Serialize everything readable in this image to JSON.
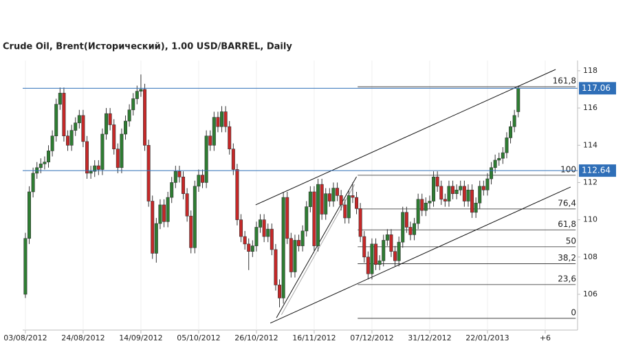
{
  "chart_data": {
    "type": "candlestick",
    "title": "Crude Oil, Brent(Исторический), 1.00 USD/BARREL, Daily",
    "up_color": "#2e7d32",
    "down_color": "#c62828",
    "xlim": [
      -0.7,
      143.4
    ],
    "ylim": [
      104.08,
      118.55
    ],
    "yticks": [
      106,
      108,
      110,
      112,
      114,
      116,
      118
    ],
    "xticks": [
      {
        "value": 0,
        "label": "03/08/2012"
      },
      {
        "value": 15,
        "label": "24/08/2012"
      },
      {
        "value": 30,
        "label": "14/09/2012"
      },
      {
        "value": 45,
        "label": "05/10/2012"
      },
      {
        "value": 60,
        "label": "26/10/2012"
      },
      {
        "value": 75,
        "label": "16/11/2012"
      },
      {
        "value": 90,
        "label": "07/12/2012"
      },
      {
        "value": 105,
        "label": "31/12/2012"
      },
      {
        "value": 120,
        "label": "22/01/2013"
      },
      {
        "value": 135,
        "label": "+6"
      }
    ],
    "ohlc": [
      [
        106.0,
        109.3,
        105.8,
        109.0
      ],
      [
        109.0,
        111.8,
        108.7,
        111.5
      ],
      [
        111.5,
        112.8,
        111.2,
        112.5
      ],
      [
        112.5,
        113.1,
        112.2,
        112.8
      ],
      [
        112.8,
        113.3,
        112.5,
        113.0
      ],
      [
        113.0,
        113.4,
        112.7,
        113.1
      ],
      [
        113.1,
        114.0,
        112.8,
        113.7
      ],
      [
        113.7,
        114.8,
        113.4,
        114.5
      ],
      [
        114.5,
        116.5,
        114.2,
        116.2
      ],
      [
        116.2,
        117.1,
        115.9,
        116.8
      ],
      [
        116.8,
        117.1,
        114.2,
        114.5
      ],
      [
        114.5,
        114.8,
        113.7,
        114.0
      ],
      [
        114.0,
        115.1,
        113.7,
        114.8
      ],
      [
        114.8,
        115.5,
        114.5,
        115.2
      ],
      [
        115.2,
        115.9,
        114.9,
        115.6
      ],
      [
        115.6,
        115.9,
        113.9,
        114.2
      ],
      [
        114.2,
        114.5,
        112.2,
        112.5
      ],
      [
        112.5,
        112.9,
        112.2,
        112.6
      ],
      [
        112.6,
        113.2,
        112.3,
        112.9
      ],
      [
        112.9,
        113.2,
        112.4,
        112.7
      ],
      [
        112.7,
        114.9,
        112.4,
        114.6
      ],
      [
        114.6,
        116.0,
        114.3,
        115.7
      ],
      [
        115.7,
        116.0,
        114.8,
        115.1
      ],
      [
        115.1,
        115.4,
        113.5,
        113.8
      ],
      [
        113.8,
        114.1,
        112.5,
        112.8
      ],
      [
        112.8,
        114.9,
        112.5,
        114.6
      ],
      [
        114.6,
        115.6,
        114.3,
        115.3
      ],
      [
        115.3,
        116.2,
        115.0,
        115.9
      ],
      [
        115.9,
        116.8,
        115.6,
        116.5
      ],
      [
        116.5,
        117.2,
        116.2,
        116.9
      ],
      [
        116.9,
        117.8,
        116.6,
        117.0
      ],
      [
        117.0,
        117.3,
        113.7,
        114.0
      ],
      [
        114.0,
        114.3,
        110.7,
        111.0
      ],
      [
        111.0,
        111.3,
        107.9,
        108.2
      ],
      [
        108.2,
        110.1,
        107.7,
        109.8
      ],
      [
        109.8,
        111.1,
        109.5,
        110.8
      ],
      [
        110.8,
        111.1,
        109.6,
        109.9
      ],
      [
        109.9,
        111.5,
        109.6,
        111.2
      ],
      [
        111.2,
        112.3,
        110.9,
        112.0
      ],
      [
        112.0,
        112.9,
        111.7,
        112.6
      ],
      [
        112.6,
        112.9,
        112.0,
        112.3
      ],
      [
        112.3,
        112.6,
        111.1,
        111.4
      ],
      [
        111.4,
        111.7,
        109.9,
        110.2
      ],
      [
        110.2,
        110.5,
        108.2,
        108.5
      ],
      [
        108.5,
        112.1,
        108.2,
        111.8
      ],
      [
        111.8,
        112.7,
        111.5,
        112.4
      ],
      [
        112.4,
        112.7,
        111.7,
        112.0
      ],
      [
        112.0,
        114.8,
        111.7,
        114.5
      ],
      [
        114.5,
        114.8,
        113.7,
        114.0
      ],
      [
        114.0,
        115.8,
        113.7,
        115.5
      ],
      [
        115.5,
        115.8,
        114.7,
        115.0
      ],
      [
        115.0,
        116.1,
        114.7,
        115.8
      ],
      [
        115.8,
        116.1,
        114.7,
        115.0
      ],
      [
        115.0,
        115.3,
        113.5,
        113.8
      ],
      [
        113.8,
        114.1,
        112.4,
        112.7
      ],
      [
        112.7,
        113.0,
        109.7,
        110.0
      ],
      [
        110.0,
        110.3,
        108.8,
        109.1
      ],
      [
        109.1,
        109.4,
        108.4,
        108.7
      ],
      [
        108.7,
        109.0,
        107.3,
        108.3
      ],
      [
        108.3,
        108.9,
        108.0,
        108.6
      ],
      [
        108.6,
        109.9,
        108.3,
        109.6
      ],
      [
        109.6,
        110.3,
        109.3,
        110.0
      ],
      [
        110.0,
        110.3,
        108.8,
        109.1
      ],
      [
        109.1,
        109.8,
        108.8,
        109.5
      ],
      [
        109.5,
        109.8,
        108.1,
        108.4
      ],
      [
        108.4,
        108.7,
        106.2,
        106.5
      ],
      [
        106.5,
        106.8,
        105.3,
        105.8
      ],
      [
        105.8,
        111.5,
        105.5,
        111.2
      ],
      [
        111.2,
        111.5,
        108.7,
        109.0
      ],
      [
        109.0,
        109.3,
        106.9,
        107.2
      ],
      [
        107.2,
        109.2,
        106.9,
        108.9
      ],
      [
        108.9,
        109.2,
        108.3,
        108.6
      ],
      [
        108.6,
        109.7,
        108.3,
        109.4
      ],
      [
        109.4,
        111.0,
        109.1,
        110.7
      ],
      [
        110.7,
        111.8,
        110.4,
        111.5
      ],
      [
        111.5,
        111.8,
        108.3,
        108.6
      ],
      [
        108.6,
        112.2,
        108.3,
        111.9
      ],
      [
        111.9,
        112.2,
        110.0,
        110.3
      ],
      [
        110.3,
        111.7,
        110.0,
        111.4
      ],
      [
        111.4,
        111.7,
        110.7,
        111.0
      ],
      [
        111.0,
        112.0,
        110.7,
        111.7
      ],
      [
        111.7,
        112.0,
        111.0,
        111.3
      ],
      [
        111.3,
        111.6,
        110.5,
        110.8
      ],
      [
        110.8,
        111.1,
        109.8,
        110.1
      ],
      [
        110.1,
        111.6,
        109.8,
        111.3
      ],
      [
        111.3,
        112.0,
        110.9,
        111.2
      ],
      [
        111.2,
        111.5,
        110.3,
        110.6
      ],
      [
        110.6,
        110.9,
        108.8,
        109.1
      ],
      [
        109.1,
        109.4,
        107.7,
        108.0
      ],
      [
        108.0,
        108.3,
        106.8,
        107.1
      ],
      [
        107.1,
        109.0,
        106.8,
        108.7
      ],
      [
        108.7,
        109.0,
        107.3,
        107.6
      ],
      [
        107.6,
        108.1,
        107.3,
        107.8
      ],
      [
        107.8,
        109.2,
        107.5,
        108.9
      ],
      [
        108.9,
        109.5,
        108.6,
        109.2
      ],
      [
        109.2,
        109.5,
        108.0,
        108.3
      ],
      [
        108.3,
        108.6,
        107.5,
        107.8
      ],
      [
        107.8,
        109.1,
        107.5,
        108.8
      ],
      [
        108.8,
        110.7,
        108.5,
        110.4
      ],
      [
        110.4,
        110.7,
        109.3,
        109.6
      ],
      [
        109.6,
        109.9,
        108.9,
        109.2
      ],
      [
        109.2,
        110.1,
        108.9,
        109.8
      ],
      [
        109.8,
        111.4,
        109.5,
        111.1
      ],
      [
        111.1,
        111.4,
        110.2,
        110.5
      ],
      [
        110.5,
        111.2,
        110.2,
        110.9
      ],
      [
        110.9,
        111.3,
        110.6,
        111.0
      ],
      [
        111.0,
        112.6,
        110.7,
        112.3
      ],
      [
        112.3,
        112.6,
        111.5,
        111.8
      ],
      [
        111.8,
        112.1,
        110.8,
        111.1
      ],
      [
        111.1,
        111.4,
        110.7,
        111.0
      ],
      [
        111.0,
        112.1,
        110.7,
        111.8
      ],
      [
        111.8,
        112.1,
        111.1,
        111.4
      ],
      [
        111.4,
        111.9,
        111.1,
        111.6
      ],
      [
        111.6,
        112.1,
        111.3,
        111.8
      ],
      [
        111.8,
        112.1,
        110.7,
        111.0
      ],
      [
        111.0,
        111.9,
        110.7,
        111.6
      ],
      [
        111.6,
        111.9,
        110.1,
        110.4
      ],
      [
        110.4,
        111.2,
        110.1,
        110.9
      ],
      [
        110.9,
        112.1,
        110.6,
        111.8
      ],
      [
        111.8,
        112.1,
        111.3,
        111.6
      ],
      [
        111.6,
        112.5,
        111.3,
        112.2
      ],
      [
        112.2,
        113.1,
        111.9,
        112.8
      ],
      [
        112.8,
        113.5,
        112.5,
        113.2
      ],
      [
        113.2,
        113.6,
        112.9,
        113.3
      ],
      [
        113.3,
        113.9,
        113.0,
        113.6
      ],
      [
        113.6,
        114.7,
        113.3,
        114.4
      ],
      [
        114.4,
        115.3,
        114.1,
        115.0
      ],
      [
        115.0,
        115.9,
        114.7,
        115.6
      ],
      [
        115.8,
        117.2,
        115.5,
        117.06
      ]
    ],
    "price_lines": [
      {
        "value": 117.06,
        "color": "#2f6fb8"
      },
      {
        "value": 112.64,
        "color": "#2f6fb8"
      }
    ],
    "fib_x": [
      86.3,
      142.9
    ],
    "fib_levels": [
      {
        "price": 117.14,
        "label": "161,8"
      },
      {
        "price": 112.39,
        "label": "100"
      },
      {
        "price": 110.58,
        "label": "76,4"
      },
      {
        "price": 109.46,
        "label": "61,8"
      },
      {
        "price": 108.55,
        "label": "50"
      },
      {
        "price": 107.64,
        "label": "38,2"
      },
      {
        "price": 106.52,
        "label": "23,6"
      },
      {
        "price": 104.71,
        "label": "0"
      }
    ],
    "trend_lines": [
      {
        "x": [
          59.8,
          137.7
        ],
        "y": [
          110.8,
          118.07
        ],
        "color": "#111"
      },
      {
        "x": [
          63.6,
          141.6
        ],
        "y": [
          104.45,
          111.76
        ],
        "color": "#111"
      },
      {
        "x": [
          65.2,
          86.0
        ],
        "y": [
          104.74,
          112.31
        ],
        "color": "#111"
      },
      {
        "x": [
          66.5,
          85.5
        ],
        "y": [
          104.9,
          111.9
        ],
        "color": "#aaa"
      }
    ]
  }
}
